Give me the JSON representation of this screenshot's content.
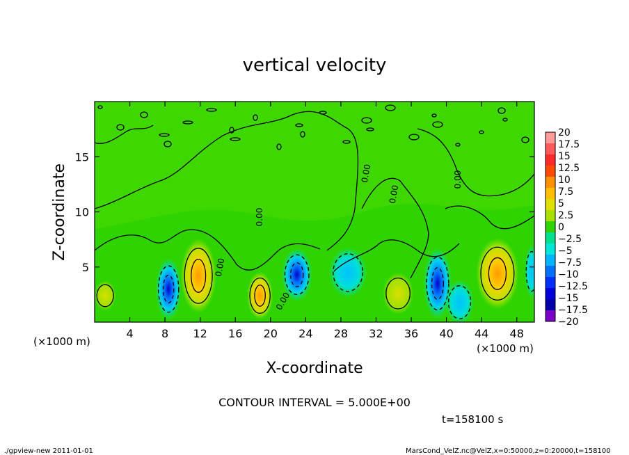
{
  "chart_data": {
    "type": "heatmap",
    "title": "vertical velocity",
    "xlabel": "X-coordinate",
    "ylabel": "Z-coordinate",
    "x_ticks": [
      4,
      8,
      12,
      16,
      20,
      24,
      28,
      32,
      36,
      40,
      44,
      48
    ],
    "y_ticks": [
      5,
      10,
      15
    ],
    "xlim": [
      0,
      50
    ],
    "ylim": [
      0,
      20
    ],
    "x_unit_left": "(×1000 m)",
    "x_unit_right": "(×1000 m)",
    "colorbar_levels": [
      "20",
      "17.5",
      "15",
      "12.5",
      "10",
      "7.5",
      "5",
      "2.5",
      "0",
      "−2.5",
      "−5",
      "−7.5",
      "−10",
      "−12.5",
      "−15",
      "−17.5",
      "−20"
    ],
    "colorbar_colors": [
      "#ff9a9a",
      "#ff5a5a",
      "#ff2a2a",
      "#ff4a00",
      "#ff9000",
      "#ffbf00",
      "#e0e000",
      "#a8e000",
      "#30d200",
      "#00e08c",
      "#00e6d8",
      "#00b4ff",
      "#0070ff",
      "#0030ff",
      "#0000d8",
      "#0000a8",
      "#7a00c8"
    ],
    "contour_label": "0.00",
    "blobs": [
      {
        "x": 8.4,
        "z": 3.0,
        "rx": 1.1,
        "rz": 2.1,
        "v": -14
      },
      {
        "x": 39.0,
        "z": 3.5,
        "rx": 1.2,
        "rz": 2.4,
        "v": -12
      },
      {
        "x": 41.5,
        "z": 1.8,
        "rx": 1.2,
        "rz": 1.5,
        "v": -6
      },
      {
        "x": 23.0,
        "z": 4.3,
        "rx": 1.3,
        "rz": 1.8,
        "v": -7
      },
      {
        "x": 28.8,
        "z": 4.5,
        "rx": 1.6,
        "rz": 1.7,
        "v": -6
      },
      {
        "x": 49.7,
        "z": 4.6,
        "rx": 0.6,
        "rz": 1.8,
        "v": -4
      },
      {
        "x": 11.8,
        "z": 4.2,
        "rx": 1.5,
        "rz": 2.5,
        "v": 7
      },
      {
        "x": 18.8,
        "z": 2.4,
        "rx": 1.1,
        "rz": 1.6,
        "v": 8
      },
      {
        "x": 34.5,
        "z": 2.6,
        "rx": 1.3,
        "rz": 1.4,
        "v": 4
      },
      {
        "x": 45.8,
        "z": 4.4,
        "rx": 1.8,
        "rz": 2.4,
        "v": 9
      },
      {
        "x": 1.2,
        "z": 2.4,
        "rx": 0.9,
        "rz": 1.0,
        "v": 2
      }
    ]
  },
  "footer": {
    "contour_interval": "CONTOUR INTERVAL = 5.000E+00",
    "time": "t=158100  s",
    "program": "./gpview-new   2011-01-01",
    "source": "MarsCond_VelZ.nc@VelZ,x=0:50000,z=0:20000,t=158100"
  }
}
